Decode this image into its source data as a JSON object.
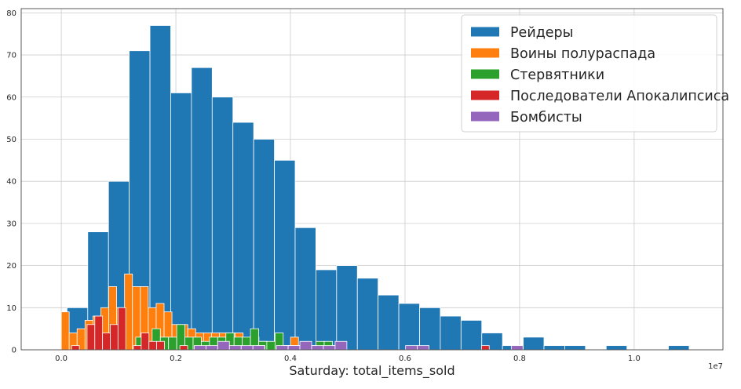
{
  "chart_data": {
    "type": "bar",
    "subtype": "overlaid-histogram",
    "xlabel": "Saturday: total_items_sold",
    "ylabel": "",
    "x_offset_label": "1e7",
    "xlim": [
      -0.07,
      1.155
    ],
    "ylim": [
      0,
      81
    ],
    "x_ticks": [
      0.0,
      0.2,
      0.4,
      0.6,
      0.8,
      1.0
    ],
    "x_tick_labels": [
      "0.0",
      "0.2",
      "0.4",
      "0.6",
      "0.8",
      "1.0"
    ],
    "y_ticks": [
      0,
      10,
      20,
      30,
      40,
      50,
      60,
      70,
      80
    ],
    "y_tick_labels": [
      "0",
      "10",
      "20",
      "30",
      "40",
      "50",
      "60",
      "70",
      "80"
    ],
    "grid": true,
    "legend_position": "top-right",
    "series": [
      {
        "name": "Рейдеры",
        "color": "#1f77b4",
        "bin_start": 0.01,
        "bin_width": 0.0362,
        "values": [
          10,
          28,
          40,
          71,
          77,
          61,
          67,
          60,
          54,
          50,
          45,
          29,
          19,
          20,
          17,
          13,
          11,
          10,
          8,
          7,
          4,
          1,
          3,
          1,
          1,
          0,
          1,
          0,
          0,
          1
        ]
      },
      {
        "name": "Воины полураспада",
        "color": "#ff7f0e",
        "bin_start": 0.0,
        "bin_width": 0.0138,
        "values": [
          9,
          4,
          5,
          7,
          8,
          10,
          15,
          10,
          18,
          15,
          15,
          10,
          11,
          9,
          6,
          6,
          5,
          4,
          4,
          4,
          4,
          4,
          4,
          2,
          3,
          2,
          1,
          1,
          1,
          3
        ]
      },
      {
        "name": "Стервятники",
        "color": "#2ca02c",
        "bin_start": 0.13,
        "bin_width": 0.0143,
        "values": [
          3,
          2,
          5,
          3,
          3,
          6,
          3,
          3,
          2,
          3,
          3,
          4,
          3,
          3,
          5,
          2,
          2,
          4,
          1,
          1,
          1,
          1,
          2,
          2,
          1
        ]
      },
      {
        "name": "Последователи Апокалипсиса",
        "color": "#d62728",
        "bin_start": 0.018,
        "bin_width": 0.0135,
        "values": [
          1,
          0,
          6,
          8,
          4,
          6,
          10,
          0,
          1,
          4,
          2,
          2,
          0,
          0,
          1,
          0,
          0,
          0,
          0,
          0,
          0,
          0,
          0,
          0,
          1,
          0,
          0,
          0,
          0,
          0,
          0,
          0,
          0,
          0,
          0,
          0,
          0,
          0,
          0,
          0,
          0,
          0,
          0,
          0,
          0,
          0,
          0,
          0,
          0,
          0,
          0,
          0,
          0,
          1,
          0,
          0,
          0,
          0,
          0,
          0
        ]
      },
      {
        "name": "Бомбисты",
        "color": "#9467bd",
        "bin_start": 0.232,
        "bin_width": 0.0205,
        "values": [
          1,
          1,
          2,
          1,
          1,
          1,
          0,
          1,
          1,
          2,
          1,
          1,
          2,
          0,
          0,
          0,
          0,
          0,
          1,
          1,
          0,
          0,
          0,
          0,
          0,
          0,
          0,
          1,
          0,
          0,
          0,
          0,
          0,
          0,
          0,
          0,
          0,
          0,
          0,
          0,
          0,
          0,
          0,
          0,
          0,
          0,
          0,
          0,
          0,
          0,
          0,
          0,
          0,
          0,
          0,
          0,
          0,
          0,
          0,
          0,
          0,
          0,
          0,
          0,
          0,
          0,
          0,
          0,
          0,
          0,
          0,
          0,
          1
        ]
      }
    ]
  }
}
